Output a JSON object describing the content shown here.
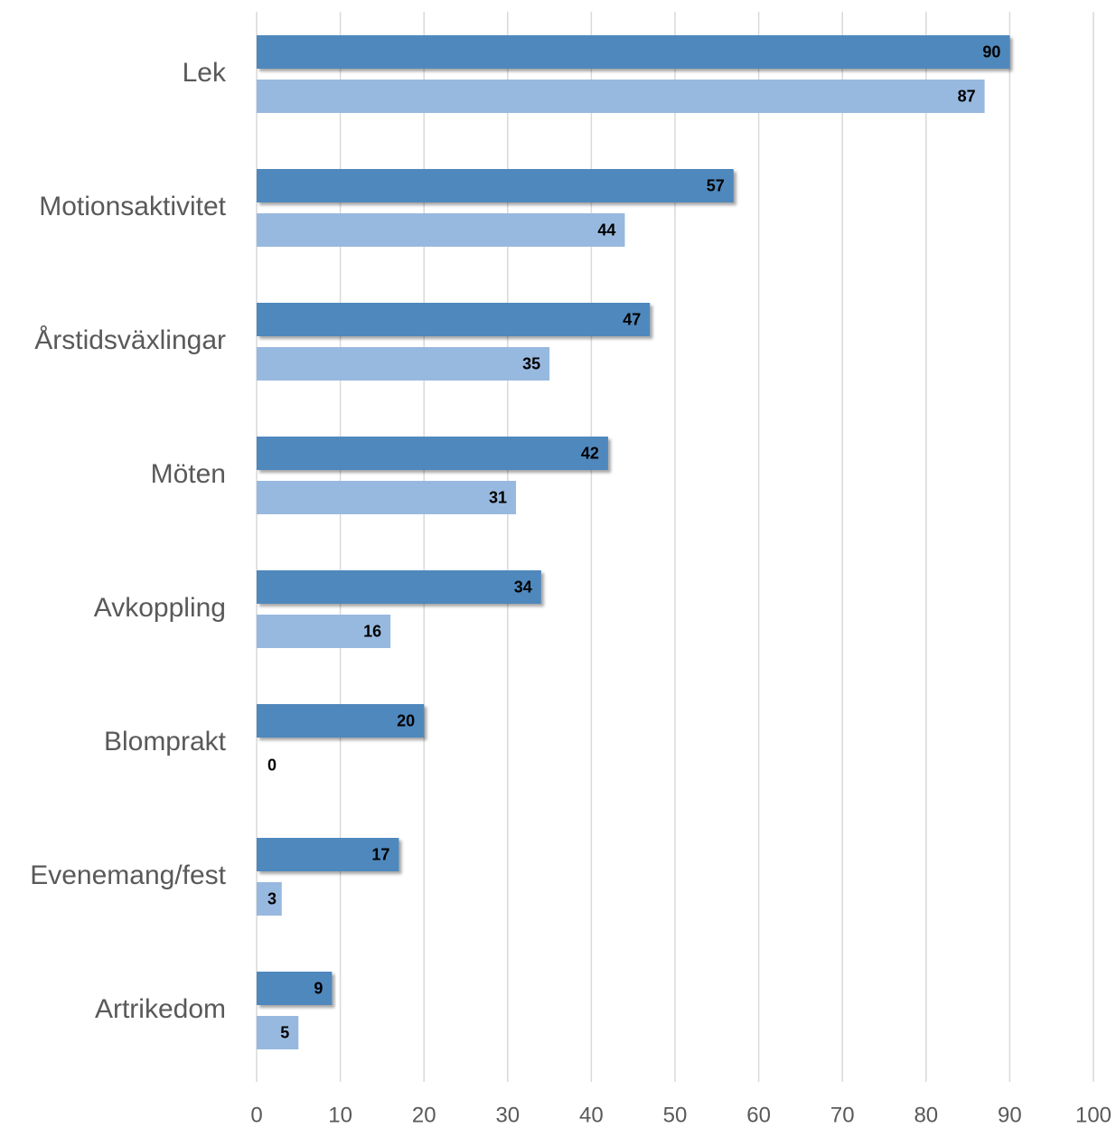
{
  "chart_data": {
    "type": "hbar",
    "categories": [
      "Lek",
      "Motionsaktivitet",
      "Årstidsväxlingar",
      "Möten",
      "Avkoppling",
      "Blomprakt",
      "Evenemang/fest",
      "Artrikedom"
    ],
    "series": [
      {
        "color": "#4f88bd",
        "values": [
          90,
          57,
          47,
          42,
          34,
          20,
          17,
          9
        ]
      },
      {
        "color": "#98b9df",
        "values": [
          87,
          44,
          35,
          31,
          16,
          0,
          3,
          5
        ]
      }
    ],
    "xlim": [
      0,
      100
    ],
    "xticks": [
      0,
      10,
      20,
      30,
      40,
      50,
      60,
      70,
      80,
      90,
      100
    ],
    "grid": true
  }
}
